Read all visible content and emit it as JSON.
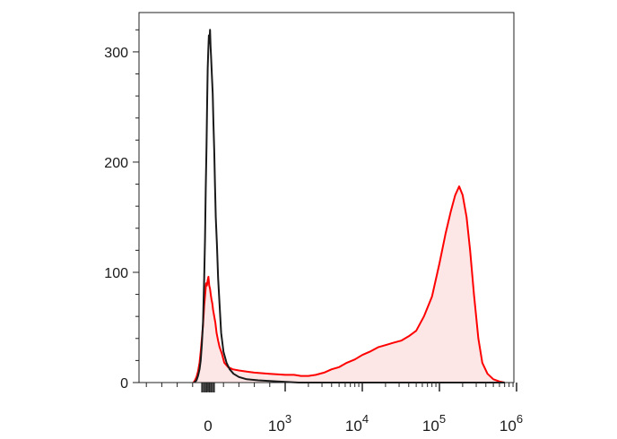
{
  "chart_data": {
    "type": "area",
    "title": "",
    "xlabel": "",
    "ylabel": "",
    "x_scale": "biexponential",
    "xlim": [
      -200,
      1000000
    ],
    "ylim": [
      0,
      330
    ],
    "grid": false,
    "legend": "none",
    "y_ticks": [
      {
        "value": 0,
        "label": "0"
      },
      {
        "value": 100,
        "label": "100"
      },
      {
        "value": 200,
        "label": "200"
      },
      {
        "value": 300,
        "label": "300"
      }
    ],
    "x_ticks": [
      {
        "value": 0,
        "base": "0",
        "exp": ""
      },
      {
        "value": 1000,
        "base": "10",
        "exp": "3"
      },
      {
        "value": 10000,
        "base": "10",
        "exp": "4"
      },
      {
        "value": 100000,
        "base": "10",
        "exp": "5"
      },
      {
        "value": 1000000,
        "base": "10",
        "exp": "6"
      }
    ],
    "series": [
      {
        "color": "#1a1a1a",
        "fill": false,
        "points": [
          [
            -180,
            0
          ],
          [
            -150,
            2
          ],
          [
            -130,
            6
          ],
          [
            -110,
            12
          ],
          [
            -95,
            20
          ],
          [
            -80,
            35
          ],
          [
            -65,
            55
          ],
          [
            -50,
            95
          ],
          [
            -40,
            130
          ],
          [
            -30,
            175
          ],
          [
            -20,
            215
          ],
          [
            -12,
            255
          ],
          [
            -5,
            285
          ],
          [
            2,
            300
          ],
          [
            10,
            315
          ],
          [
            18,
            308
          ],
          [
            25,
            320
          ],
          [
            32,
            305
          ],
          [
            40,
            295
          ],
          [
            50,
            278
          ],
          [
            60,
            262
          ],
          [
            70,
            235
          ],
          [
            80,
            210
          ],
          [
            90,
            180
          ],
          [
            100,
            150
          ],
          [
            115,
            125
          ],
          [
            130,
            95
          ],
          [
            150,
            70
          ],
          [
            170,
            45
          ],
          [
            200,
            28
          ],
          [
            240,
            18
          ],
          [
            280,
            12
          ],
          [
            330,
            8
          ],
          [
            400,
            5
          ],
          [
            500,
            3
          ],
          [
            650,
            2
          ],
          [
            900,
            1
          ],
          [
            1500,
            0
          ],
          [
            5000,
            0
          ],
          [
            50000,
            0
          ],
          [
            700000,
            0
          ]
        ]
      },
      {
        "color": "#ff0000",
        "fill": true,
        "fill_color": "#fde6e6",
        "points": [
          [
            -190,
            0
          ],
          [
            -170,
            2
          ],
          [
            -150,
            5
          ],
          [
            -130,
            10
          ],
          [
            -110,
            18
          ],
          [
            -95,
            28
          ],
          [
            -80,
            40
          ],
          [
            -65,
            52
          ],
          [
            -50,
            70
          ],
          [
            -35,
            82
          ],
          [
            -25,
            90
          ],
          [
            -15,
            88
          ],
          [
            -5,
            93
          ],
          [
            5,
            96
          ],
          [
            15,
            88
          ],
          [
            25,
            85
          ],
          [
            35,
            80
          ],
          [
            45,
            75
          ],
          [
            55,
            72
          ],
          [
            65,
            66
          ],
          [
            80,
            60
          ],
          [
            95,
            54
          ],
          [
            110,
            45
          ],
          [
            130,
            38
          ],
          [
            150,
            32
          ],
          [
            180,
            26
          ],
          [
            210,
            18
          ],
          [
            260,
            14
          ],
          [
            320,
            12
          ],
          [
            400,
            11
          ],
          [
            500,
            10
          ],
          [
            600,
            9
          ],
          [
            800,
            8
          ],
          [
            1000,
            7
          ],
          [
            1300,
            7
          ],
          [
            1600,
            6
          ],
          [
            2000,
            6
          ],
          [
            2500,
            7
          ],
          [
            3200,
            9
          ],
          [
            4000,
            12
          ],
          [
            5000,
            14
          ],
          [
            6300,
            18
          ],
          [
            8000,
            21
          ],
          [
            10000,
            25
          ],
          [
            12500,
            28
          ],
          [
            16000,
            32
          ],
          [
            20000,
            34
          ],
          [
            25000,
            36
          ],
          [
            32000,
            38
          ],
          [
            40000,
            42
          ],
          [
            50000,
            47
          ],
          [
            63000,
            60
          ],
          [
            80000,
            78
          ],
          [
            100000,
            108
          ],
          [
            120000,
            135
          ],
          [
            140000,
            155
          ],
          [
            160000,
            170
          ],
          [
            180000,
            178
          ],
          [
            200000,
            170
          ],
          [
            225000,
            150
          ],
          [
            250000,
            120
          ],
          [
            280000,
            80
          ],
          [
            320000,
            40
          ],
          [
            360000,
            18
          ],
          [
            420000,
            8
          ],
          [
            500000,
            3
          ],
          [
            600000,
            1
          ],
          [
            700000,
            0
          ]
        ]
      }
    ]
  }
}
